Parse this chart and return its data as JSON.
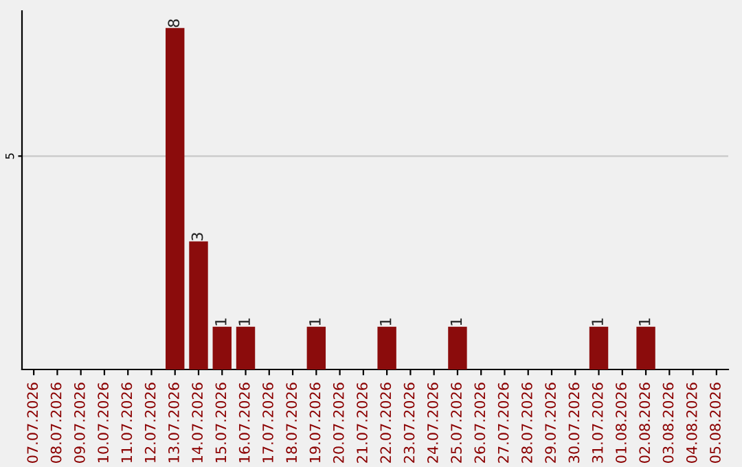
{
  "chart_data": {
    "type": "bar",
    "categories": [
      "07.07.2026",
      "08.07.2026",
      "09.07.2026",
      "10.07.2026",
      "11.07.2026",
      "12.07.2026",
      "13.07.2026",
      "14.07.2026",
      "15.07.2026",
      "16.07.2026",
      "17.07.2026",
      "18.07.2026",
      "19.07.2026",
      "20.07.2026",
      "21.07.2026",
      "22.07.2026",
      "23.07.2026",
      "24.07.2026",
      "25.07.2026",
      "26.07.2026",
      "27.07.2026",
      "28.07.2026",
      "29.07.2026",
      "30.07.2026",
      "31.07.2026",
      "01.08.2026",
      "02.08.2026",
      "03.08.2026",
      "04.08.2026",
      "05.08.2026"
    ],
    "values": [
      0,
      0,
      0,
      0,
      0,
      0,
      8,
      3,
      1,
      1,
      0,
      0,
      1,
      0,
      0,
      1,
      0,
      0,
      1,
      0,
      0,
      0,
      0,
      0,
      1,
      0,
      1,
      0,
      0,
      0
    ],
    "value_labels": [
      null,
      null,
      null,
      null,
      null,
      null,
      "8",
      "3",
      "1",
      "1",
      null,
      null,
      "1",
      null,
      null,
      "1",
      null,
      null,
      "1",
      null,
      null,
      null,
      null,
      null,
      "1",
      null,
      "1",
      null,
      null,
      null
    ],
    "color": "#8b0c0c",
    "ylim": [
      0,
      8.4
    ],
    "yticks": [
      5
    ],
    "grid": "y"
  }
}
